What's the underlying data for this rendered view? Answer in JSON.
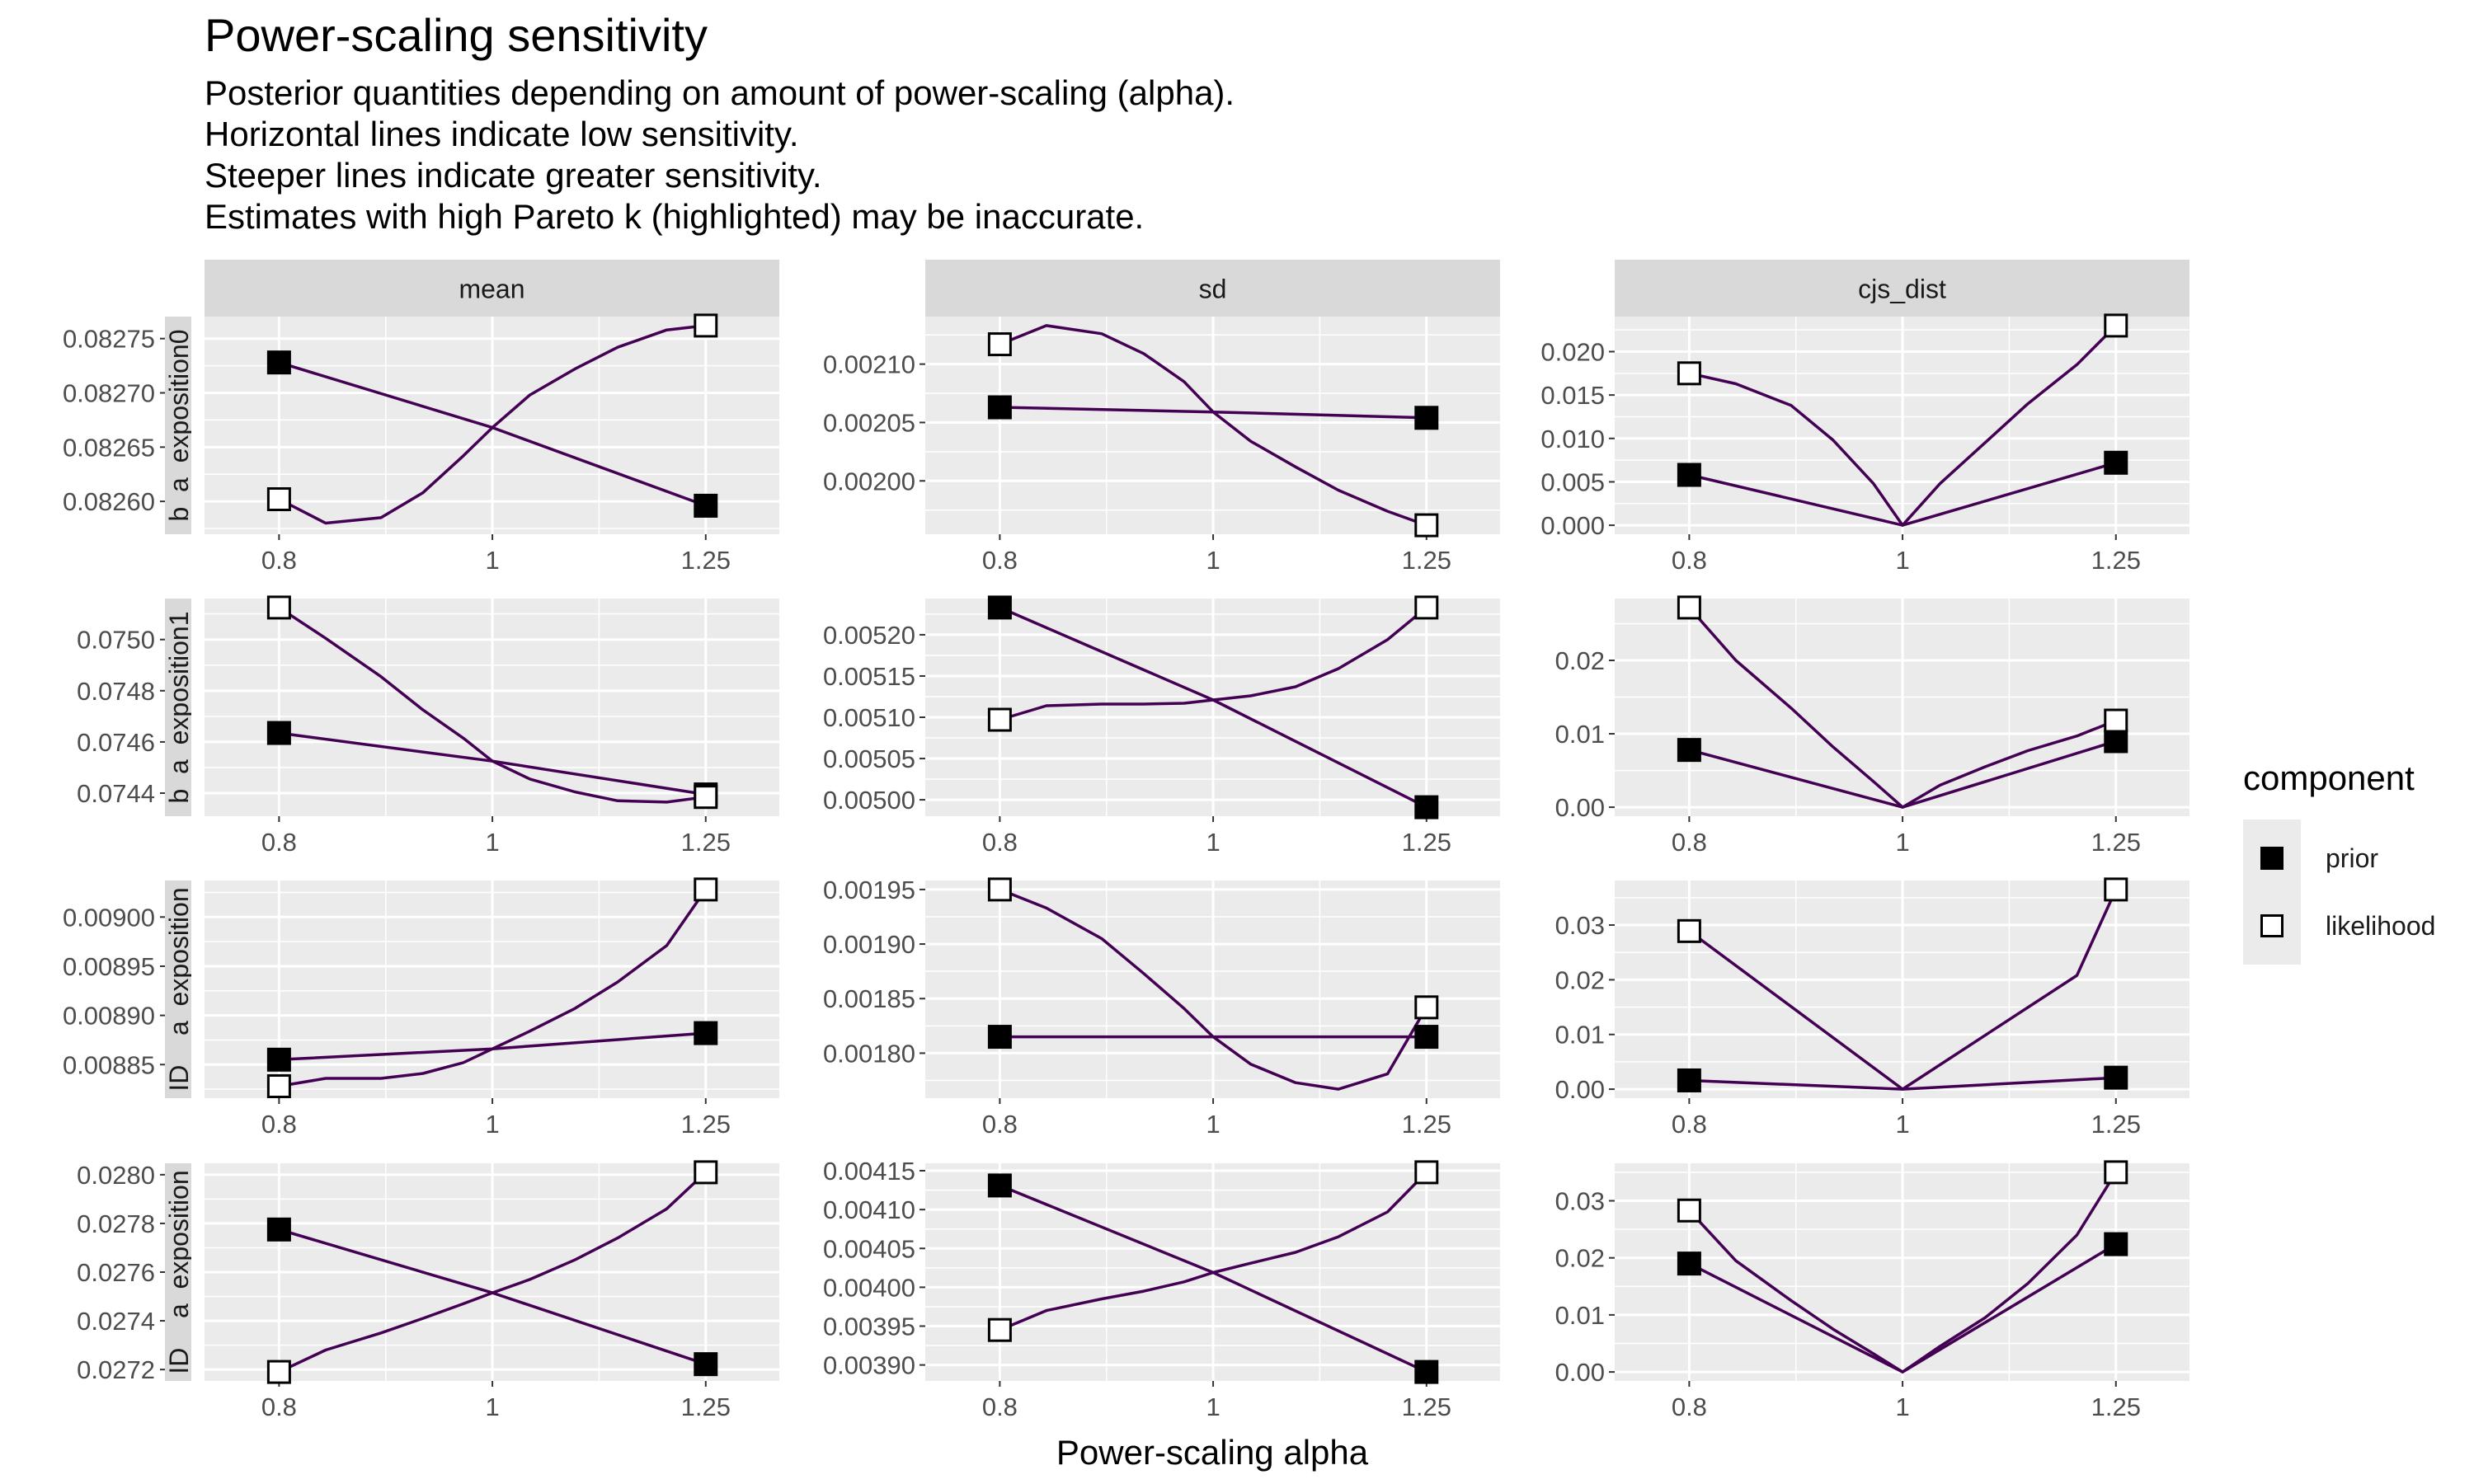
{
  "title": "Power-scaling sensitivity",
  "subtitle": [
    "Posterior quantities depending on amount of power-scaling (alpha).",
    "Horizontal lines indicate low sensitivity.",
    "Steeper lines indicate greater sensitivity.",
    "Estimates with high Pareto k (highlighted) may be inaccurate."
  ],
  "xlabel": "Power-scaling alpha",
  "legend": {
    "title": "component",
    "items": [
      {
        "label": "prior",
        "fill": "#000000"
      },
      {
        "label": "likelihood",
        "fill": "#ffffff"
      }
    ]
  },
  "colors": {
    "line": "#440154",
    "panel_bg": "#ebebeb",
    "strip_bg": "#d9d9d9",
    "grid": "#ffffff"
  },
  "chart_data": {
    "type": "line",
    "x_scale": "log",
    "x_ticks": [
      {
        "value": 0.8,
        "label": "0.8"
      },
      {
        "value": 1,
        "label": "1"
      },
      {
        "value": 1.25,
        "label": "1.25"
      }
    ],
    "xlim": [
      0.74,
      1.35
    ],
    "columns": [
      "mean",
      "sd",
      "cjs_dist"
    ],
    "rows": [
      "b_a_exposition0",
      "b_a_exposition1",
      "ID__a_exposition",
      "ID__a_exposition"
    ],
    "panels": [
      {
        "row": 0,
        "col": 0,
        "ylim": [
          0.082578,
          0.082762
        ],
        "y_ticks": [
          {
            "value": 0.0826,
            "label": "0.08260"
          },
          {
            "value": 0.08265,
            "label": "0.08265"
          },
          {
            "value": 0.0827,
            "label": "0.08270"
          },
          {
            "value": 0.08275,
            "label": "0.08275"
          }
        ],
        "series": [
          {
            "name": "prior",
            "x": [
              0.8,
              1,
              1.25
            ],
            "y": [
              0.082728,
              0.082668,
              0.082596
            ]
          },
          {
            "name": "likelihood",
            "x": [
              0.8,
              0.84,
              0.89,
              0.93,
              0.97,
              1,
              1.04,
              1.09,
              1.14,
              1.2,
              1.25
            ],
            "y": [
              0.082602,
              0.08258,
              0.082585,
              0.082608,
              0.082642,
              0.082668,
              0.082698,
              0.082722,
              0.082742,
              0.082758,
              0.082762
            ]
          }
        ]
      },
      {
        "row": 0,
        "col": 1,
        "ylim": [
          0.001962,
          0.002133
        ],
        "y_ticks": [
          {
            "value": 0.002,
            "label": "0.00200"
          },
          {
            "value": 0.00205,
            "label": "0.00205"
          },
          {
            "value": 0.0021,
            "label": "0.00210"
          }
        ],
        "series": [
          {
            "name": "prior",
            "x": [
              0.8,
              1,
              1.25
            ],
            "y": [
              0.002063,
              0.002059,
              0.002054
            ]
          },
          {
            "name": "likelihood",
            "x": [
              0.8,
              0.84,
              0.89,
              0.93,
              0.97,
              1,
              1.04,
              1.09,
              1.14,
              1.2,
              1.25
            ],
            "y": [
              0.002117,
              0.002133,
              0.002126,
              0.002109,
              0.002085,
              0.002059,
              0.002034,
              0.002012,
              0.001992,
              0.001974,
              0.001962
            ]
          }
        ]
      },
      {
        "row": 0,
        "col": 2,
        "ylim": [
          0,
          0.023
        ],
        "y_ticks": [
          {
            "value": 0,
            "label": "0.000"
          },
          {
            "value": 0.005,
            "label": "0.005"
          },
          {
            "value": 0.01,
            "label": "0.010"
          },
          {
            "value": 0.015,
            "label": "0.015"
          },
          {
            "value": 0.02,
            "label": "0.020"
          }
        ],
        "series": [
          {
            "name": "prior",
            "x": [
              0.8,
              1,
              1.25
            ],
            "y": [
              0.0058,
              0,
              0.0072
            ]
          },
          {
            "name": "likelihood",
            "x": [
              0.8,
              0.84,
              0.89,
              0.93,
              0.97,
              1,
              1.04,
              1.09,
              1.14,
              1.2,
              1.25
            ],
            "y": [
              0.0175,
              0.0163,
              0.0138,
              0.0098,
              0.0048,
              0,
              0.0048,
              0.0095,
              0.014,
              0.0185,
              0.023
            ]
          }
        ]
      },
      {
        "row": 1,
        "col": 0,
        "ylim": [
          0.074345,
          0.075125
        ],
        "y_ticks": [
          {
            "value": 0.0744,
            "label": "0.0744"
          },
          {
            "value": 0.0746,
            "label": "0.0746"
          },
          {
            "value": 0.0748,
            "label": "0.0748"
          },
          {
            "value": 0.075,
            "label": "0.0750"
          }
        ],
        "series": [
          {
            "name": "prior",
            "x": [
              0.8,
              1,
              1.25
            ],
            "y": [
              0.074635,
              0.074525,
              0.074395
            ]
          },
          {
            "name": "likelihood",
            "x": [
              0.8,
              0.84,
              0.89,
              0.93,
              0.97,
              1,
              1.04,
              1.09,
              1.14,
              1.2,
              1.25
            ],
            "y": [
              0.075125,
              0.075005,
              0.074855,
              0.074725,
              0.074615,
              0.074525,
              0.074455,
              0.074405,
              0.07437,
              0.074365,
              0.074385
            ]
          }
        ]
      },
      {
        "row": 1,
        "col": 1,
        "ylim": [
          0.004991,
          0.005233
        ],
        "y_ticks": [
          {
            "value": 0.005,
            "label": "0.00500"
          },
          {
            "value": 0.00505,
            "label": "0.00505"
          },
          {
            "value": 0.0051,
            "label": "0.00510"
          },
          {
            "value": 0.00515,
            "label": "0.00515"
          },
          {
            "value": 0.0052,
            "label": "0.00520"
          }
        ],
        "series": [
          {
            "name": "prior",
            "x": [
              0.8,
              1,
              1.25
            ],
            "y": [
              0.005233,
              0.005121,
              0.004991
            ]
          },
          {
            "name": "likelihood",
            "x": [
              0.8,
              0.84,
              0.89,
              0.93,
              0.97,
              1,
              1.04,
              1.09,
              1.14,
              1.2,
              1.25
            ],
            "y": [
              0.005097,
              0.005114,
              0.005116,
              0.005116,
              0.005117,
              0.005121,
              0.005126,
              0.005137,
              0.005159,
              0.005194,
              0.005233
            ]
          }
        ]
      },
      {
        "row": 1,
        "col": 2,
        "ylim": [
          0,
          0.0272
        ],
        "y_ticks": [
          {
            "value": 0,
            "label": "0.00"
          },
          {
            "value": 0.01,
            "label": "0.01"
          },
          {
            "value": 0.02,
            "label": "0.02"
          }
        ],
        "series": [
          {
            "name": "prior",
            "x": [
              0.8,
              1,
              1.25
            ],
            "y": [
              0.0078,
              0,
              0.009
            ]
          },
          {
            "name": "likelihood",
            "x": [
              0.8,
              0.84,
              0.89,
              0.93,
              0.97,
              1,
              1.04,
              1.09,
              1.14,
              1.2,
              1.25
            ],
            "y": [
              0.0272,
              0.02,
              0.0135,
              0.0082,
              0.0035,
              0,
              0.003,
              0.0055,
              0.0077,
              0.0097,
              0.0118
            ]
          }
        ]
      },
      {
        "row": 2,
        "col": 0,
        "ylim": [
          0.008825,
          0.009028
        ],
        "y_ticks": [
          {
            "value": 0.00885,
            "label": "0.00885"
          },
          {
            "value": 0.0089,
            "label": "0.00890"
          },
          {
            "value": 0.00895,
            "label": "0.00895"
          },
          {
            "value": 0.009,
            "label": "0.00900"
          }
        ],
        "series": [
          {
            "name": "prior",
            "x": [
              0.8,
              1,
              1.25
            ],
            "y": [
              0.008855,
              0.008866,
              0.008882
            ]
          },
          {
            "name": "likelihood",
            "x": [
              0.8,
              0.84,
              0.89,
              0.93,
              0.97,
              1,
              1.04,
              1.09,
              1.14,
              1.2,
              1.25
            ],
            "y": [
              0.008828,
              0.008836,
              0.008836,
              0.008841,
              0.008852,
              0.008866,
              0.008884,
              0.008907,
              0.008934,
              0.008971,
              0.009028
            ]
          }
        ]
      },
      {
        "row": 2,
        "col": 1,
        "ylim": [
          0.001767,
          0.00195
        ],
        "y_ticks": [
          {
            "value": 0.0018,
            "label": "0.00180"
          },
          {
            "value": 0.00185,
            "label": "0.00185"
          },
          {
            "value": 0.0019,
            "label": "0.00190"
          },
          {
            "value": 0.00195,
            "label": "0.00195"
          }
        ],
        "series": [
          {
            "name": "prior",
            "x": [
              0.8,
              1,
              1.25
            ],
            "y": [
              0.001815,
              0.001815,
              0.001815
            ]
          },
          {
            "name": "likelihood",
            "x": [
              0.8,
              0.84,
              0.89,
              0.93,
              0.97,
              1,
              1.04,
              1.09,
              1.14,
              1.2,
              1.25
            ],
            "y": [
              0.00195,
              0.001933,
              0.001905,
              0.001873,
              0.001841,
              0.001815,
              0.00179,
              0.001773,
              0.001767,
              0.001781,
              0.001842
            ]
          }
        ]
      },
      {
        "row": 2,
        "col": 2,
        "ylim": [
          0,
          0.0365
        ],
        "y_ticks": [
          {
            "value": 0,
            "label": "0.00"
          },
          {
            "value": 0.01,
            "label": "0.01"
          },
          {
            "value": 0.02,
            "label": "0.02"
          },
          {
            "value": 0.03,
            "label": "0.03"
          }
        ],
        "series": [
          {
            "name": "prior",
            "x": [
              0.8,
              1,
              1.25
            ],
            "y": [
              0.0016,
              0,
              0.0021
            ]
          },
          {
            "name": "likelihood",
            "x": [
              0.8,
              1,
              1.2,
              1.25
            ],
            "y": [
              0.0289,
              0,
              0.0208,
              0.0365
            ]
          }
        ]
      },
      {
        "row": 3,
        "col": 0,
        "ylim": [
          0.02719,
          0.02801
        ],
        "y_ticks": [
          {
            "value": 0.0272,
            "label": "0.0272"
          },
          {
            "value": 0.0274,
            "label": "0.0274"
          },
          {
            "value": 0.0276,
            "label": "0.0276"
          },
          {
            "value": 0.0278,
            "label": "0.0278"
          },
          {
            "value": 0.028,
            "label": "0.0280"
          }
        ],
        "series": [
          {
            "name": "prior",
            "x": [
              0.8,
              1,
              1.25
            ],
            "y": [
              0.027775,
              0.027515,
              0.027222
            ]
          },
          {
            "name": "likelihood",
            "x": [
              0.8,
              0.84,
              0.89,
              0.93,
              0.97,
              1,
              1.04,
              1.09,
              1.14,
              1.2,
              1.25
            ],
            "y": [
              0.02719,
              0.02728,
              0.02735,
              0.02741,
              0.02747,
              0.027515,
              0.02757,
              0.02765,
              0.02774,
              0.02786,
              0.02801
            ]
          }
        ]
      },
      {
        "row": 3,
        "col": 1,
        "ylim": [
          0.003891,
          0.004148
        ],
        "y_ticks": [
          {
            "value": 0.0039,
            "label": "0.00390"
          },
          {
            "value": 0.00395,
            "label": "0.00395"
          },
          {
            "value": 0.004,
            "label": "0.00400"
          },
          {
            "value": 0.00405,
            "label": "0.00405"
          },
          {
            "value": 0.0041,
            "label": "0.00410"
          },
          {
            "value": 0.00415,
            "label": "0.00415"
          }
        ],
        "series": [
          {
            "name": "prior",
            "x": [
              0.8,
              1,
              1.25
            ],
            "y": [
              0.004131,
              0.004019,
              0.003891
            ]
          },
          {
            "name": "likelihood",
            "x": [
              0.8,
              0.84,
              0.89,
              0.93,
              0.97,
              1,
              1.04,
              1.09,
              1.14,
              1.2,
              1.25
            ],
            "y": [
              0.003945,
              0.00397,
              0.003985,
              0.003995,
              0.004007,
              0.004019,
              0.004031,
              0.004045,
              0.004065,
              0.004097,
              0.004148
            ]
          }
        ]
      },
      {
        "row": 3,
        "col": 2,
        "ylim": [
          0,
          0.035
        ],
        "y_ticks": [
          {
            "value": 0,
            "label": "0.00"
          },
          {
            "value": 0.01,
            "label": "0.01"
          },
          {
            "value": 0.02,
            "label": "0.02"
          },
          {
            "value": 0.03,
            "label": "0.03"
          }
        ],
        "series": [
          {
            "name": "prior",
            "x": [
              0.8,
              1,
              1.25
            ],
            "y": [
              0.019,
              0,
              0.0224
            ]
          },
          {
            "name": "likelihood",
            "x": [
              0.8,
              0.84,
              0.89,
              0.93,
              0.97,
              1,
              1.04,
              1.09,
              1.14,
              1.2,
              1.25
            ],
            "y": [
              0.0283,
              0.0195,
              0.0125,
              0.0075,
              0.0032,
              0,
              0.0045,
              0.0095,
              0.0155,
              0.024,
              0.035
            ]
          }
        ]
      }
    ]
  }
}
